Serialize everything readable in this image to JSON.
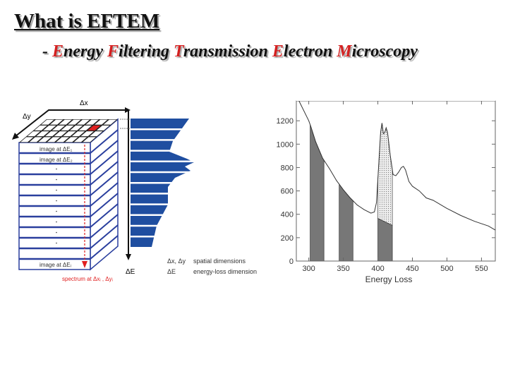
{
  "title": "What is EFTEM",
  "subtitle": {
    "dash": "- ",
    "words": [
      {
        "initial": "E",
        "rest": "nergy "
      },
      {
        "initial": "F",
        "rest": "iltering "
      },
      {
        "initial": "T",
        "rest": "ransmission "
      },
      {
        "initial": "E",
        "rest": "lectron "
      },
      {
        "initial": "M",
        "rest": "icroscopy"
      }
    ]
  },
  "diagram": {
    "axis_x": "Δx",
    "axis_y": "Δy",
    "axis_e": "ΔE",
    "image_1": "image at ΔE₁",
    "image_2": "image at ΔE₂",
    "image_i": "image at ΔEᵢ",
    "spectrum_label": "spectrum at Δxᵢ , Δyᵢ",
    "legend": [
      {
        "symbol": "Δx, Δy",
        "text": "spatial dimensions"
      },
      {
        "symbol": "ΔE",
        "text": "energy-loss dimension"
      }
    ],
    "colors": {
      "slab": "#2a3f9e",
      "highlight": "#e02020",
      "spectrum": "#1f4ea0"
    }
  },
  "chart_data": {
    "type": "line",
    "title": "",
    "xlabel": "Energy Loss",
    "ylabel": "",
    "xlim": [
      282,
      570
    ],
    "ylim": [
      0,
      1370
    ],
    "xticks": [
      300,
      350,
      400,
      450,
      500,
      550
    ],
    "yticks": [
      0,
      200,
      400,
      600,
      800,
      1000,
      1200
    ],
    "x": [
      285,
      300,
      303,
      310,
      320,
      330,
      340,
      350,
      360,
      370,
      380,
      390,
      395,
      398,
      400,
      402,
      404,
      406,
      408,
      410,
      412,
      414,
      418,
      422,
      426,
      430,
      434,
      437,
      440,
      445,
      450,
      460,
      470,
      480,
      500,
      520,
      540,
      560,
      570
    ],
    "y": [
      1380,
      1200,
      1150,
      1020,
      880,
      790,
      690,
      610,
      540,
      480,
      440,
      410,
      420,
      500,
      700,
      900,
      1100,
      1180,
      1090,
      1100,
      1140,
      1100,
      900,
      740,
      730,
      760,
      800,
      810,
      780,
      680,
      640,
      600,
      540,
      520,
      450,
      390,
      340,
      300,
      265
    ],
    "windows": [
      {
        "range": [
          302,
          322
        ],
        "fill": "background"
      },
      {
        "range": [
          344,
          364
        ],
        "fill": "background"
      },
      {
        "range": [
          400,
          421
        ],
        "fill": "background",
        "background_line": [
          365,
          305
        ],
        "edge_fill": "signal"
      }
    ]
  }
}
